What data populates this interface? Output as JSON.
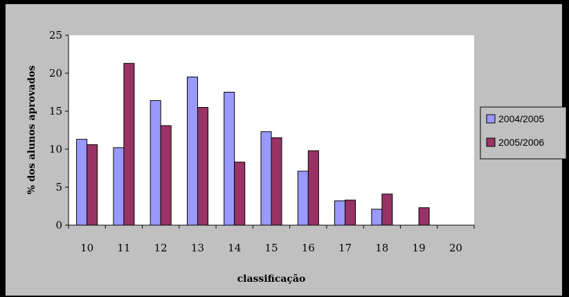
{
  "chart_data": {
    "type": "bar",
    "xlabel": "classificação",
    "ylabel": "% dos alunos aprovados",
    "ylim": [
      0,
      25
    ],
    "yticks": [
      "0",
      "5",
      "10",
      "15",
      "20",
      "25"
    ],
    "categories": [
      "10",
      "11",
      "12",
      "13",
      "14",
      "15",
      "16",
      "17",
      "18",
      "19",
      "20"
    ],
    "series": [
      {
        "name": "2004/2005",
        "color": "#9999ff",
        "values": [
          11.3,
          10.2,
          16.4,
          19.5,
          17.5,
          12.3,
          7.1,
          3.2,
          2.1,
          0,
          0
        ]
      },
      {
        "name": "2005/2006",
        "color": "#993366",
        "values": [
          10.6,
          21.3,
          13.1,
          15.5,
          8.3,
          11.5,
          9.8,
          3.3,
          4.1,
          2.3,
          0
        ]
      }
    ],
    "grid": false,
    "legend_position": "right"
  }
}
